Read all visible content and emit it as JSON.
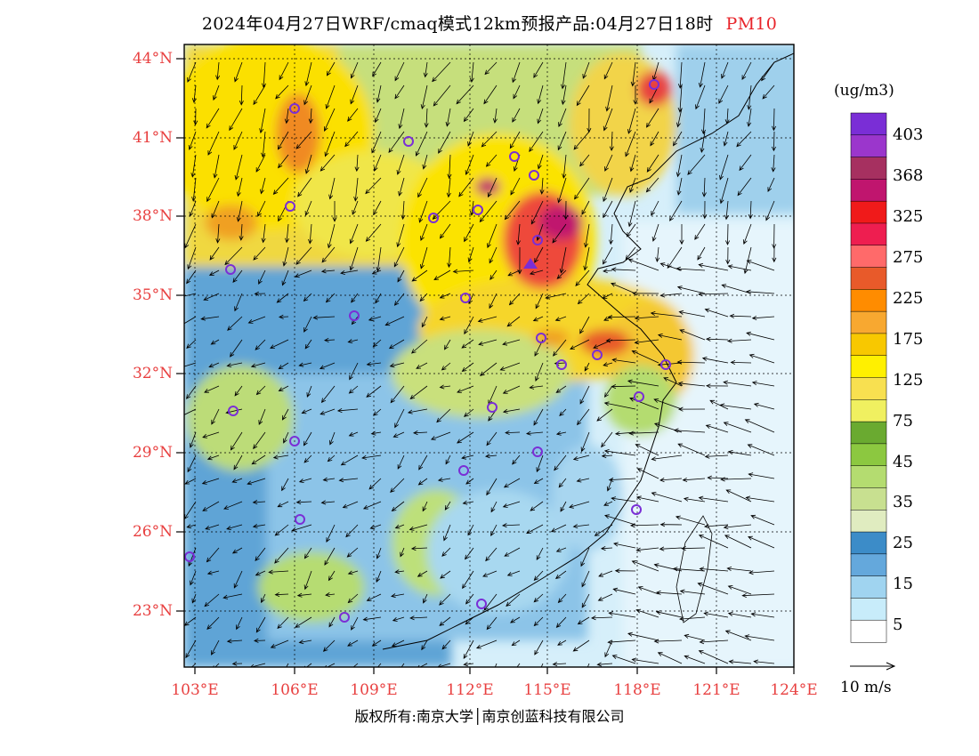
{
  "title": {
    "main": "2024年04月27日WRF/cmaq模式12km预报产品:04月27日18时",
    "pollutant": "PM10",
    "pollutant_color": "#e8242a"
  },
  "axes": {
    "lat_labels": [
      "44°N",
      "41°N",
      "38°N",
      "35°N",
      "32°N",
      "29°N",
      "26°N",
      "23°N"
    ],
    "lon_labels": [
      "103°E",
      "106°E",
      "109°E",
      "112°E",
      "115°E",
      "118°E",
      "121°E",
      "124°E"
    ],
    "label_color": "#e84040"
  },
  "colorbar": {
    "unit": "(ug/m3)",
    "labels": [
      "403",
      "368",
      "325",
      "275",
      "225",
      "175",
      "125",
      "75",
      "45",
      "35",
      "25",
      "15",
      "5"
    ],
    "colors": [
      "#7a2ed6",
      "#9b36cc",
      "#a63060",
      "#c0156e",
      "#f01a1a",
      "#ee1e50",
      "#ff6a6a",
      "#e85a2a",
      "#ff8c00",
      "#f8a830",
      "#f8c800",
      "#fff000",
      "#f8e050",
      "#f0f060",
      "#6aaa30",
      "#8cc840",
      "#b4dc70",
      "#c8e090",
      "#e0ecc0",
      "#3c8cc8",
      "#64a8dc",
      "#a0d4f0",
      "#c8ecfa",
      "#ffffff"
    ]
  },
  "vector_scale": {
    "label": "10 m/s"
  },
  "copyright": "版权所有:南京大学│南京创蓝科技有限公司"
}
